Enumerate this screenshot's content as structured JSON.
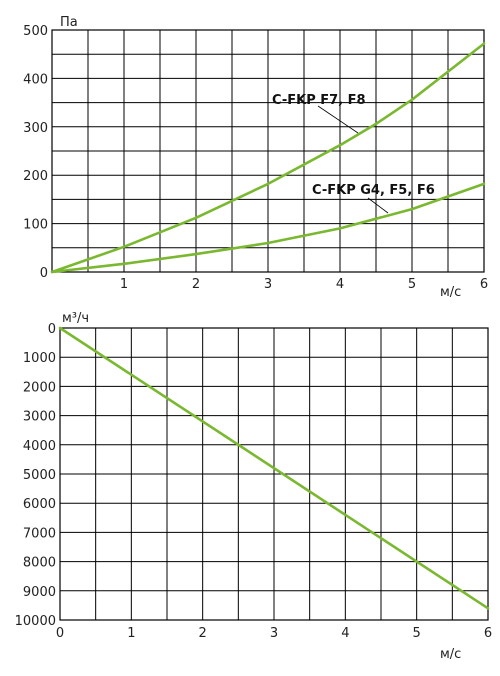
{
  "colors": {
    "curve": "#7ab830",
    "grid": "#000000"
  },
  "chart_data": [
    {
      "type": "line",
      "ylabel": "Па",
      "xlabel": "м/с",
      "xlim": [
        0,
        6
      ],
      "ylim": [
        0,
        500
      ],
      "xticks": [
        1,
        2,
        3,
        4,
        5,
        6
      ],
      "yticks": [
        0,
        100,
        200,
        300,
        400,
        500
      ],
      "grid": true,
      "series": [
        {
          "name": "C-FKP F7, F8",
          "x": [
            0,
            1,
            2,
            3,
            4,
            4.5,
            5,
            6
          ],
          "values": [
            0,
            52,
            112,
            182,
            262,
            306,
            356,
            472
          ]
        },
        {
          "name": "C-FKP G4, F5, F6",
          "x": [
            0,
            1,
            2,
            3,
            4,
            5,
            6
          ],
          "values": [
            0,
            17,
            37,
            60,
            90,
            130,
            182
          ]
        }
      ]
    },
    {
      "type": "line",
      "ylabel": "м³/ч",
      "xlabel": "м/с",
      "xlim": [
        0,
        6
      ],
      "ylim": [
        0,
        10000
      ],
      "xticks": [
        0,
        1,
        2,
        3,
        4,
        5,
        6
      ],
      "yticks": [
        0,
        1000,
        2000,
        3000,
        4000,
        5000,
        6000,
        7000,
        8000,
        9000,
        10000
      ],
      "y_inverted": true,
      "grid": true,
      "series": [
        {
          "x": [
            0,
            6
          ],
          "values": [
            0,
            9600
          ]
        }
      ]
    }
  ]
}
